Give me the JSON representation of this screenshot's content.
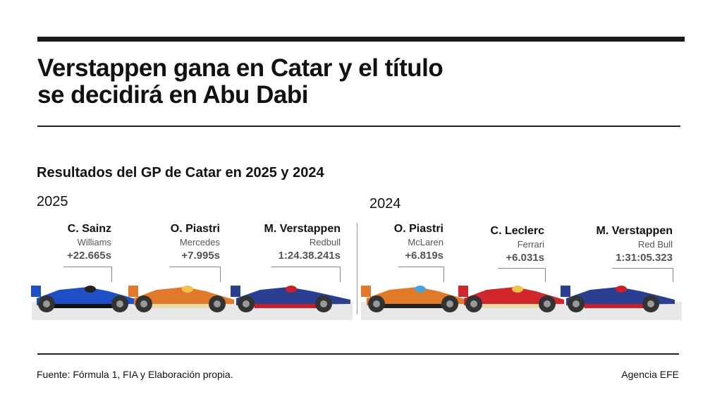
{
  "header": {
    "title_line1": "Verstappen gana en Catar y el título",
    "title_line2": "se decidirá en Abu Dabi",
    "subtitle": "Resultados del GP de Catar en 2025 y 2024"
  },
  "sections": [
    {
      "year": "2025",
      "drivers": [
        {
          "name": "C. Sainz",
          "team": "Williams",
          "time": "+22.665s"
        },
        {
          "name": "O. Piastri",
          "team": "Mercedes",
          "time": "+7.995s"
        },
        {
          "name": "M. Verstappen",
          "team": "Redbull",
          "time": "1:24.38.241s"
        }
      ]
    },
    {
      "year": "2024",
      "drivers": [
        {
          "name": "O. Piastri",
          "team": "McLaren",
          "time": "+6.819s"
        },
        {
          "name": "C. Leclerc",
          "team": "Ferrari",
          "time": "+6.031s"
        },
        {
          "name": "M. Verstappen",
          "team": "Red Bull",
          "time": "1:31:05.323"
        }
      ]
    }
  ],
  "colors": {
    "williams": "#1f4fc4",
    "mclaren": "#e07a2a",
    "redbull": "#2a3f8f",
    "ferrari": "#d0272d"
  },
  "footer": {
    "source": "Fuente: Fórmula 1, FIA y Elaboración propia.",
    "credit": "Agencia EFE"
  }
}
